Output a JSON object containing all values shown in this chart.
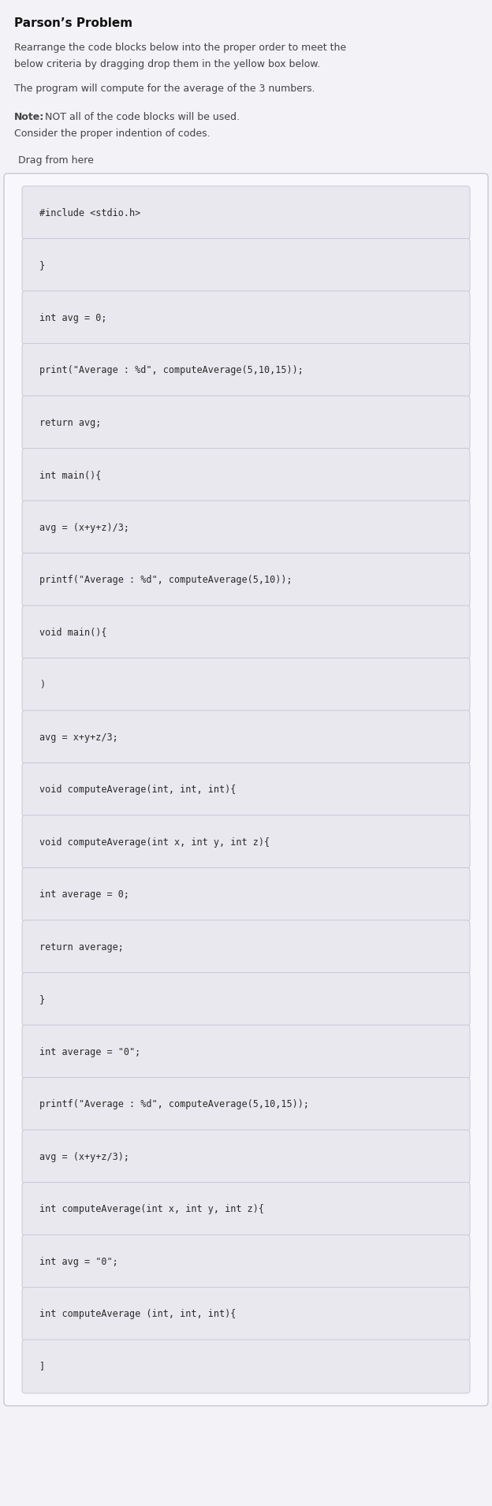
{
  "title": "Parson’s Problem",
  "description1": "Rearrange the code blocks below into the proper order to meet the",
  "description2": "below criteria by dragging drop them in the yellow box below.",
  "description3": "The program will compute for the average of the 3 numbers.",
  "note_bold": "Note:",
  "note_rest": " NOT all of the code blocks will be used.",
  "note_line2": "Consider the proper indention of codes.",
  "drag_label": "Drag from here",
  "blocks": [
    "#include <stdio.h>",
    "}",
    "int avg = 0;",
    "print(\"Average : %d\", computeAverage(5,10,15));",
    "return avg;",
    "int main(){",
    "avg = (x+y+z)/3;",
    "printf(\"Average : %d\", computeAverage(5,10));",
    "void main(){",
    ")",
    "avg = x+y+z/3;",
    "void computeAverage(int, int, int){",
    "void computeAverage(int x, int y, int z){",
    "int average = 0;",
    "return average;",
    "}",
    "int average = \"0\";",
    "printf(\"Average : %d\", computeAverage(5,10,15));",
    "avg = (x+y+z/3);",
    "int computeAverage(int x, int y, int z){",
    "int avg = \"0\";",
    "int computeAverage (int, int, int){",
    "]"
  ],
  "bg_color": "#eeeef3",
  "page_bg": "#f2f2f7",
  "block_bg": "#e8e8ee",
  "block_border": "#c8c8d8",
  "code_color": "#2a2a2a",
  "title_color": "#111111",
  "desc_color": "#444444",
  "drag_area_bg": "#f8f8fc",
  "drag_area_border": "#c0c0cc",
  "outer_border": "#c8c8d4"
}
